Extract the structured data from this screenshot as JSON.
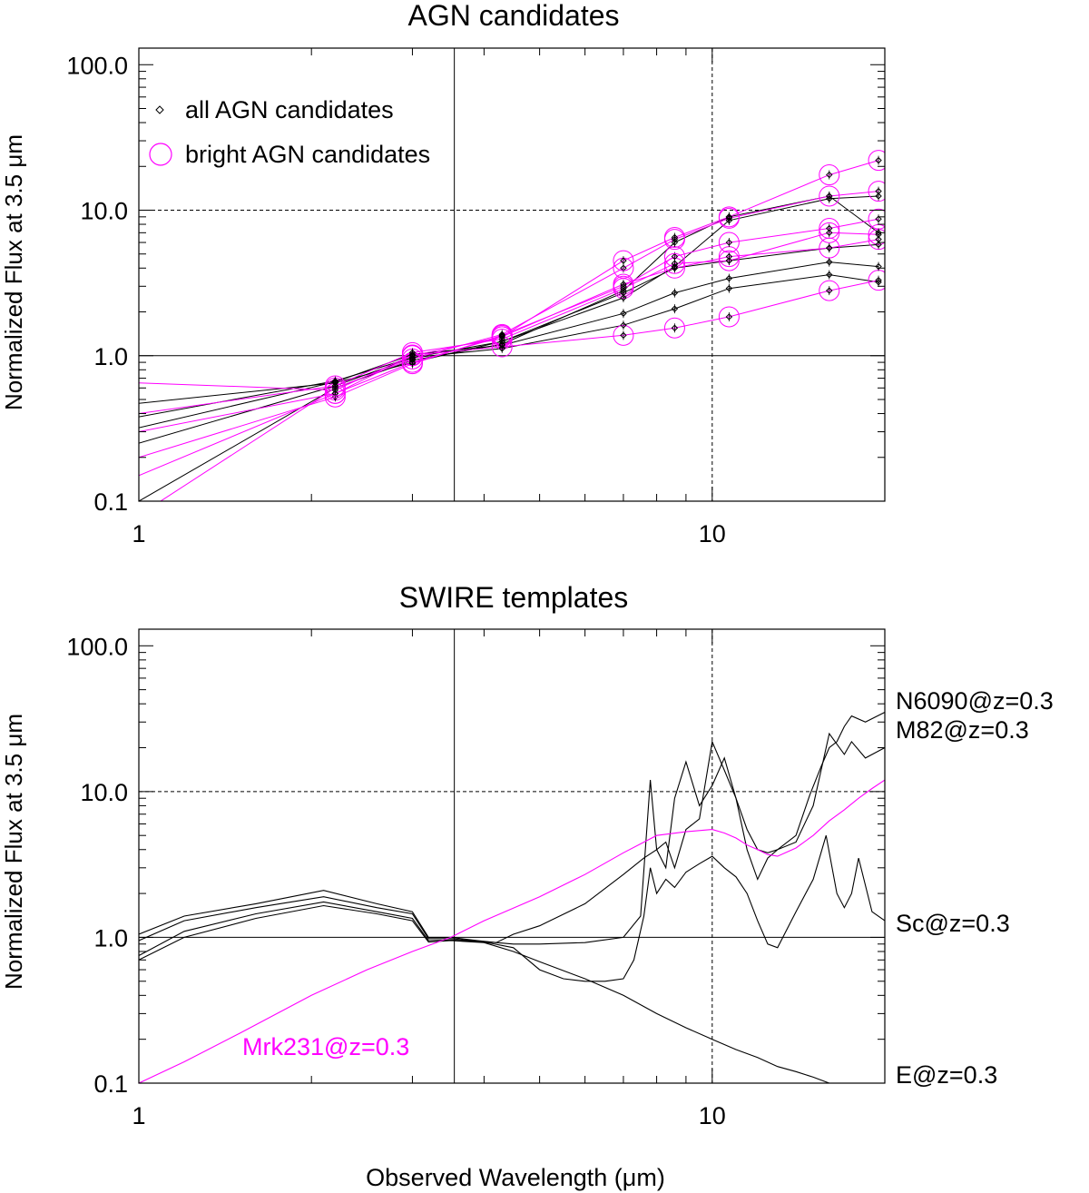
{
  "chart_data": [
    {
      "type": "line",
      "title": "AGN candidates",
      "xlabel": "",
      "ylabel": "Normalized Flux at 3.5 μm",
      "xscale": "log",
      "yscale": "log",
      "xlim": [
        1,
        20
      ],
      "ylim": [
        0.1,
        130
      ],
      "x_ticks": [
        {
          "value": 1,
          "label": "1"
        },
        {
          "value": 10,
          "label": "10"
        }
      ],
      "y_ticks": [
        {
          "value": 0.1,
          "label": "0.1"
        },
        {
          "value": 1,
          "label": "1.0"
        },
        {
          "value": 10,
          "label": "10.0"
        },
        {
          "value": 100,
          "label": "100.0"
        }
      ],
      "reference_lines": [
        {
          "axis": "x",
          "value": 3.55,
          "style": "solid"
        },
        {
          "axis": "x",
          "value": 10,
          "style": "dashed"
        },
        {
          "axis": "y",
          "value": 1,
          "style": "solid"
        },
        {
          "axis": "y",
          "value": 10,
          "style": "dashed"
        }
      ],
      "legend": {
        "position": "top-left",
        "entries": [
          {
            "label": "all AGN candidates",
            "marker": "diamond",
            "color": "#000000"
          },
          {
            "label": "bright AGN candidates",
            "marker": "circle",
            "color": "#ff00ff"
          }
        ]
      },
      "bands_x": [
        1,
        2.2,
        3.0,
        4.3,
        7.0,
        8.6,
        10.7,
        16,
        19.5
      ],
      "series": [
        {
          "bright": true,
          "values": [
            0.65,
            0.58,
            1.01,
            1.15,
            1.38,
            1.55,
            1.85,
            2.8,
            3.3
          ]
        },
        {
          "bright": true,
          "values": [
            0.3,
            0.55,
            0.9,
            1.35,
            3.1,
            4.0,
            4.8,
            5.5,
            6.3
          ]
        },
        {
          "bright": true,
          "values": [
            0.2,
            0.52,
            0.88,
            1.38,
            3.0,
            4.8,
            6.0,
            7.5,
            8.7
          ]
        },
        {
          "bright": true,
          "values": [
            0.08,
            0.6,
            0.95,
            1.4,
            4.0,
            6.3,
            8.8,
            12.5,
            13.5
          ]
        },
        {
          "bright": true,
          "values": [
            0.15,
            0.55,
            1.0,
            1.35,
            4.5,
            6.5,
            9.0,
            17.5,
            22.0
          ]
        },
        {
          "bright": true,
          "values": [
            0.4,
            0.62,
            1.05,
            1.3,
            2.9,
            4.3,
            4.5,
            7.0,
            6.8
          ]
        },
        {
          "bright": false,
          "values": [
            0.47,
            0.65,
            0.9,
            1.25,
            2.7,
            4.0,
            4.5,
            5.5,
            5.8
          ]
        },
        {
          "bright": false,
          "values": [
            0.38,
            0.67,
            0.97,
            1.12,
            1.62,
            2.1,
            2.9,
            3.6,
            3.2
          ]
        },
        {
          "bright": false,
          "values": [
            0.32,
            0.66,
            1.02,
            1.18,
            1.95,
            2.7,
            3.4,
            4.4,
            4.1
          ]
        },
        {
          "bright": false,
          "values": [
            0.25,
            0.62,
            0.97,
            1.25,
            2.5,
            4.1,
            8.5,
            12.0,
            12.5
          ]
        },
        {
          "bright": false,
          "values": [
            0.1,
            0.6,
            0.93,
            1.2,
            2.8,
            6.0,
            9.0,
            12.5,
            7.0
          ]
        }
      ]
    },
    {
      "type": "line",
      "title": "SWIRE templates",
      "xlabel": "Observed Wavelength (μm)",
      "ylabel": "Normalized Flux at 3.5 μm",
      "xscale": "log",
      "yscale": "log",
      "xlim": [
        1,
        20
      ],
      "ylim": [
        0.1,
        130
      ],
      "x_ticks": [
        {
          "value": 1,
          "label": "1"
        },
        {
          "value": 10,
          "label": "10"
        }
      ],
      "y_ticks": [
        {
          "value": 0.1,
          "label": "0.1"
        },
        {
          "value": 1,
          "label": "1.0"
        },
        {
          "value": 10,
          "label": "10.0"
        },
        {
          "value": 100,
          "label": "100.0"
        }
      ],
      "reference_lines": [
        {
          "axis": "x",
          "value": 3.55,
          "style": "solid"
        },
        {
          "axis": "x",
          "value": 10,
          "style": "dashed"
        },
        {
          "axis": "y",
          "value": 1,
          "style": "solid"
        },
        {
          "axis": "y",
          "value": 10,
          "style": "dashed"
        }
      ],
      "series": [
        {
          "name": "N6090@z=0.3",
          "color": "#000000",
          "x": [
            1.0,
            1.2,
            1.6,
            2.1,
            2.6,
            3.0,
            3.2,
            3.5,
            3.9,
            4.2,
            4.5,
            5.0,
            6.0,
            7.0,
            7.6,
            8.0,
            8.3,
            8.6,
            9.0,
            9.5,
            10.0,
            10.5,
            11.0,
            11.5,
            12.0,
            12.5,
            13.0,
            14.0,
            14.8,
            15.5,
            16.0,
            16.5,
            17.0,
            17.5,
            18.5,
            20.0
          ],
          "y": [
            1.05,
            1.4,
            1.7,
            2.1,
            1.7,
            1.5,
            1.0,
            1.0,
            0.95,
            0.92,
            1.05,
            1.2,
            1.7,
            2.7,
            3.5,
            4.0,
            4.5,
            3.0,
            5.5,
            6.5,
            22.0,
            14.0,
            9.0,
            5.5,
            4.0,
            3.8,
            4.0,
            5.0,
            9.5,
            15.0,
            20.0,
            22.0,
            28.0,
            33.0,
            30.0,
            35.0
          ]
        },
        {
          "name": "M82@z=0.3",
          "color": "#000000",
          "x": [
            1.0,
            1.2,
            1.6,
            2.1,
            2.6,
            3.0,
            3.2,
            3.5,
            3.9,
            4.2,
            4.5,
            5.0,
            6.0,
            7.0,
            7.5,
            7.8,
            8.0,
            8.3,
            8.6,
            9.0,
            9.5,
            10.0,
            10.5,
            11.0,
            11.5,
            12.0,
            12.5,
            13.0,
            14.0,
            15.0,
            16.0,
            17.0,
            17.5,
            18.5,
            20.0
          ],
          "y": [
            0.95,
            1.3,
            1.6,
            1.9,
            1.6,
            1.45,
            0.98,
            0.98,
            0.94,
            0.92,
            0.9,
            0.9,
            0.92,
            1.0,
            1.4,
            12.0,
            4.0,
            3.0,
            9.0,
            16.0,
            8.0,
            11.0,
            17.0,
            9.0,
            4.0,
            2.5,
            3.5,
            4.0,
            4.5,
            8.0,
            25.0,
            18.0,
            22.0,
            17.0,
            20.0
          ]
        },
        {
          "name": "Sc@z=0.3",
          "color": "#000000",
          "x": [
            1.0,
            1.2,
            1.6,
            2.1,
            2.6,
            3.0,
            3.2,
            3.5,
            4.0,
            4.5,
            5.0,
            5.5,
            6.0,
            6.5,
            7.0,
            7.3,
            7.6,
            7.8,
            8.0,
            8.3,
            8.6,
            9.0,
            9.5,
            10.0,
            10.5,
            11.0,
            11.5,
            12.0,
            12.5,
            13.0,
            14.0,
            15.0,
            15.8,
            16.5,
            17.0,
            17.5,
            18.0,
            19.0,
            20.0
          ],
          "y": [
            0.75,
            1.1,
            1.45,
            1.75,
            1.5,
            1.35,
            0.95,
            0.96,
            0.93,
            0.85,
            0.6,
            0.52,
            0.5,
            0.5,
            0.52,
            0.7,
            1.4,
            3.0,
            2.0,
            2.5,
            2.2,
            2.8,
            3.2,
            3.6,
            3.0,
            2.6,
            2.0,
            1.3,
            0.9,
            0.85,
            1.5,
            2.5,
            5.0,
            2.0,
            1.6,
            2.0,
            3.5,
            1.5,
            1.3
          ]
        },
        {
          "name": "E@z=0.3",
          "color": "#000000",
          "x": [
            1.0,
            1.2,
            1.6,
            2.1,
            2.6,
            3.0,
            3.2,
            3.5,
            4.0,
            4.5,
            5.0,
            6.0,
            7.0,
            8.0,
            9.0,
            10.0,
            11.0,
            12.0,
            13.0,
            14.0,
            15.0,
            16.0,
            17.0,
            18.0
          ],
          "y": [
            0.7,
            1.0,
            1.35,
            1.65,
            1.45,
            1.3,
            0.93,
            0.95,
            0.92,
            0.8,
            0.68,
            0.52,
            0.4,
            0.3,
            0.24,
            0.2,
            0.17,
            0.15,
            0.13,
            0.12,
            0.11,
            0.1,
            0.095,
            0.088
          ]
        },
        {
          "name": "Mrk231@z=0.3",
          "color": "#ff00ff",
          "x": [
            1.0,
            1.2,
            1.5,
            2.0,
            2.5,
            3.0,
            3.5,
            4.0,
            5.0,
            6.0,
            7.0,
            8.0,
            9.0,
            10.0,
            10.5,
            11.0,
            11.5,
            12.0,
            12.5,
            13.0,
            14.0,
            15.0,
            16.0,
            17.0,
            18.0,
            19.0,
            20.0
          ],
          "y": [
            0.1,
            0.14,
            0.22,
            0.4,
            0.6,
            0.8,
            1.0,
            1.3,
            1.9,
            2.7,
            3.8,
            5.0,
            5.3,
            5.5,
            5.2,
            4.8,
            4.3,
            4.0,
            3.7,
            3.6,
            4.1,
            5.0,
            6.3,
            7.5,
            9.0,
            10.5,
            12.0
          ]
        }
      ]
    }
  ]
}
